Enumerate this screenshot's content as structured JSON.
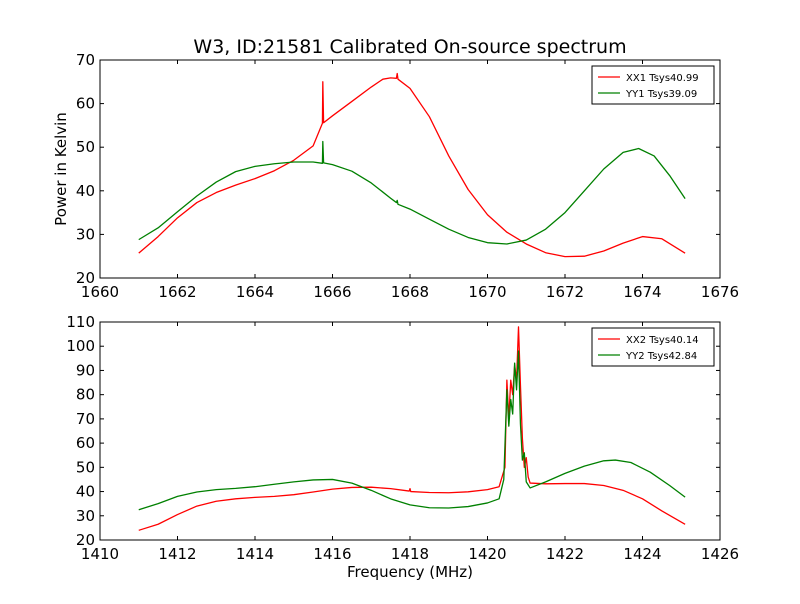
{
  "title": "W3, ID:21581 Calibrated On-source spectrum",
  "chart_data": [
    {
      "type": "line",
      "ylabel": "Power in Kelvin",
      "xlabel": "",
      "xlim": [
        1660,
        1676
      ],
      "ylim": [
        20,
        70
      ],
      "xticks": [
        1660,
        1662,
        1664,
        1666,
        1668,
        1670,
        1672,
        1674,
        1676
      ],
      "yticks": [
        20,
        30,
        40,
        50,
        60,
        70
      ],
      "legend": "top-right",
      "series": [
        {
          "name": "XX1 Tsys40.99",
          "color": "#ff0000",
          "points": [
            [
              1661.0,
              25.7
            ],
            [
              1661.5,
              29.5
            ],
            [
              1662.0,
              33.8
            ],
            [
              1662.5,
              37.3
            ],
            [
              1663.0,
              39.6
            ],
            [
              1663.5,
              41.3
            ],
            [
              1664.0,
              42.8
            ],
            [
              1664.5,
              44.6
            ],
            [
              1665.0,
              47.0
            ],
            [
              1665.5,
              50.3
            ],
            [
              1665.74,
              55.5
            ],
            [
              1665.75,
              65.0
            ],
            [
              1665.77,
              55.6
            ],
            [
              1666.0,
              57.2
            ],
            [
              1666.5,
              60.5
            ],
            [
              1667.0,
              63.8
            ],
            [
              1667.3,
              65.6
            ],
            [
              1667.5,
              65.9
            ],
            [
              1667.65,
              65.8
            ],
            [
              1667.67,
              66.9
            ],
            [
              1667.69,
              65.6
            ],
            [
              1668.0,
              63.5
            ],
            [
              1668.5,
              57.0
            ],
            [
              1669.0,
              48.0
            ],
            [
              1669.5,
              40.3
            ],
            [
              1670.0,
              34.5
            ],
            [
              1670.5,
              30.5
            ],
            [
              1671.0,
              27.8
            ],
            [
              1671.5,
              25.8
            ],
            [
              1672.0,
              24.9
            ],
            [
              1672.5,
              25.0
            ],
            [
              1673.0,
              26.2
            ],
            [
              1673.5,
              28.0
            ],
            [
              1674.0,
              29.5
            ],
            [
              1674.5,
              29.0
            ],
            [
              1675.1,
              25.7
            ]
          ]
        },
        {
          "name": "YY1 Tsys39.09",
          "color": "#008000",
          "points": [
            [
              1661.0,
              28.8
            ],
            [
              1661.5,
              31.5
            ],
            [
              1662.0,
              35.2
            ],
            [
              1662.5,
              38.8
            ],
            [
              1663.0,
              42.0
            ],
            [
              1663.5,
              44.4
            ],
            [
              1664.0,
              45.6
            ],
            [
              1664.5,
              46.2
            ],
            [
              1665.0,
              46.6
            ],
            [
              1665.5,
              46.6
            ],
            [
              1665.74,
              46.3
            ],
            [
              1665.75,
              51.3
            ],
            [
              1665.77,
              46.4
            ],
            [
              1666.0,
              46.0
            ],
            [
              1666.5,
              44.5
            ],
            [
              1667.0,
              41.8
            ],
            [
              1667.5,
              38.3
            ],
            [
              1667.65,
              37.3
            ],
            [
              1667.67,
              37.8
            ],
            [
              1667.69,
              36.9
            ],
            [
              1668.0,
              35.8
            ],
            [
              1668.5,
              33.5
            ],
            [
              1669.0,
              31.2
            ],
            [
              1669.5,
              29.3
            ],
            [
              1670.0,
              28.1
            ],
            [
              1670.5,
              27.8
            ],
            [
              1671.0,
              28.7
            ],
            [
              1671.5,
              31.2
            ],
            [
              1672.0,
              35.0
            ],
            [
              1672.5,
              40.0
            ],
            [
              1673.0,
              45.0
            ],
            [
              1673.5,
              48.8
            ],
            [
              1673.9,
              49.7
            ],
            [
              1674.3,
              48.0
            ],
            [
              1674.7,
              43.5
            ],
            [
              1675.1,
              38.2
            ]
          ]
        }
      ]
    },
    {
      "type": "line",
      "ylabel": "",
      "xlabel": "Frequency (MHz)",
      "xlim": [
        1410,
        1426
      ],
      "ylim": [
        20,
        110
      ],
      "xticks": [
        1410,
        1412,
        1414,
        1416,
        1418,
        1420,
        1422,
        1424,
        1426
      ],
      "yticks": [
        20,
        30,
        40,
        50,
        60,
        70,
        80,
        90,
        100,
        110
      ],
      "legend": "top-right",
      "series": [
        {
          "name": "XX2 Tsys40.14",
          "color": "#ff0000",
          "points": [
            [
              1411.0,
              24.0
            ],
            [
              1411.5,
              26.5
            ],
            [
              1412.0,
              30.5
            ],
            [
              1412.5,
              34.0
            ],
            [
              1413.0,
              36.0
            ],
            [
              1413.5,
              37.0
            ],
            [
              1414.0,
              37.6
            ],
            [
              1414.5,
              38.0
            ],
            [
              1415.0,
              38.7
            ],
            [
              1415.5,
              39.8
            ],
            [
              1416.0,
              41.0
            ],
            [
              1416.5,
              41.7
            ],
            [
              1417.0,
              41.8
            ],
            [
              1417.5,
              41.2
            ],
            [
              1417.98,
              40.2
            ],
            [
              1418.0,
              41.2
            ],
            [
              1418.02,
              40.0
            ],
            [
              1418.5,
              39.6
            ],
            [
              1419.0,
              39.5
            ],
            [
              1419.5,
              39.9
            ],
            [
              1420.0,
              40.8
            ],
            [
              1420.3,
              42.0
            ],
            [
              1420.45,
              50.0
            ],
            [
              1420.5,
              86.0
            ],
            [
              1420.55,
              70.0
            ],
            [
              1420.6,
              86.0
            ],
            [
              1420.65,
              80.0
            ],
            [
              1420.7,
              92.0
            ],
            [
              1420.75,
              86.0
            ],
            [
              1420.8,
              108.0
            ],
            [
              1420.85,
              84.0
            ],
            [
              1420.9,
              62.0
            ],
            [
              1420.95,
              50.0
            ],
            [
              1421.0,
              54.0
            ],
            [
              1421.05,
              46.0
            ],
            [
              1421.1,
              43.5
            ],
            [
              1421.5,
              43.2
            ],
            [
              1422.0,
              43.3
            ],
            [
              1422.5,
              43.3
            ],
            [
              1423.0,
              42.5
            ],
            [
              1423.5,
              40.5
            ],
            [
              1424.0,
              37.0
            ],
            [
              1424.5,
              32.0
            ],
            [
              1425.1,
              26.5
            ]
          ]
        },
        {
          "name": "YY2 Tsys42.84",
          "color": "#008000",
          "points": [
            [
              1411.0,
              32.5
            ],
            [
              1411.5,
              35.0
            ],
            [
              1412.0,
              38.0
            ],
            [
              1412.5,
              39.8
            ],
            [
              1413.0,
              40.8
            ],
            [
              1413.5,
              41.3
            ],
            [
              1414.0,
              42.0
            ],
            [
              1414.5,
              43.0
            ],
            [
              1415.0,
              44.0
            ],
            [
              1415.5,
              44.8
            ],
            [
              1416.0,
              45.0
            ],
            [
              1416.5,
              43.5
            ],
            [
              1417.0,
              40.5
            ],
            [
              1417.5,
              37.0
            ],
            [
              1418.0,
              34.5
            ],
            [
              1418.5,
              33.3
            ],
            [
              1419.0,
              33.2
            ],
            [
              1419.5,
              33.8
            ],
            [
              1420.0,
              35.3
            ],
            [
              1420.3,
              37.0
            ],
            [
              1420.42,
              45.0
            ],
            [
              1420.5,
              82.0
            ],
            [
              1420.55,
              67.0
            ],
            [
              1420.6,
              78.0
            ],
            [
              1420.65,
              72.0
            ],
            [
              1420.7,
              93.0
            ],
            [
              1420.75,
              82.0
            ],
            [
              1420.8,
              98.0
            ],
            [
              1420.85,
              68.0
            ],
            [
              1420.9,
              53.0
            ],
            [
              1420.95,
              56.0
            ],
            [
              1421.0,
              44.0
            ],
            [
              1421.1,
              41.5
            ],
            [
              1421.5,
              44.0
            ],
            [
              1422.0,
              47.5
            ],
            [
              1422.5,
              50.5
            ],
            [
              1423.0,
              52.7
            ],
            [
              1423.3,
              53.0
            ],
            [
              1423.7,
              52.0
            ],
            [
              1424.2,
              48.0
            ],
            [
              1424.7,
              42.5
            ],
            [
              1425.1,
              37.7
            ]
          ]
        }
      ]
    }
  ]
}
